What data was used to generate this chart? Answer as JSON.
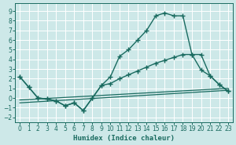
{
  "xlabel": "Humidex (Indice chaleur)",
  "xlim": [
    -0.5,
    23.5
  ],
  "ylim": [
    -2.5,
    9.8
  ],
  "yticks": [
    -2,
    -1,
    0,
    1,
    2,
    3,
    4,
    5,
    6,
    7,
    8,
    9
  ],
  "xticks": [
    0,
    1,
    2,
    3,
    4,
    5,
    6,
    7,
    8,
    9,
    10,
    11,
    12,
    13,
    14,
    15,
    16,
    17,
    18,
    19,
    20,
    21,
    22,
    23
  ],
  "background_color": "#cde8e8",
  "grid_color": "#ffffff",
  "line_color": "#1a6b60",
  "line1_x": [
    0,
    1,
    2,
    3,
    4,
    5,
    6,
    7,
    8,
    9,
    10,
    11,
    12,
    13,
    14,
    15,
    16,
    17,
    18,
    19,
    20,
    21,
    22,
    23
  ],
  "line1_y": [
    2.2,
    1.1,
    0.0,
    -0.1,
    -0.3,
    -0.8,
    -0.5,
    -1.3,
    0.0,
    1.3,
    2.2,
    4.3,
    5.0,
    6.0,
    7.0,
    8.5,
    8.8,
    8.5,
    8.5,
    4.5,
    2.9,
    2.3,
    1.4,
    0.7
  ],
  "line2_x": [
    0,
    1,
    2,
    3,
    4,
    5,
    6,
    7,
    8,
    9,
    10,
    11,
    12,
    13,
    14,
    15,
    16,
    17,
    18,
    19,
    20,
    21,
    22,
    23
  ],
  "line2_y": [
    2.2,
    1.1,
    0.0,
    -0.1,
    -0.3,
    -0.8,
    -0.5,
    -1.3,
    0.0,
    1.3,
    1.5,
    2.0,
    2.4,
    2.8,
    3.2,
    3.6,
    3.9,
    4.2,
    4.5,
    4.5,
    4.5,
    2.3,
    1.4,
    0.7
  ],
  "line3_x": [
    0,
    23
  ],
  "line3_y": [
    -0.2,
    1.0
  ],
  "line4_x": [
    0,
    23
  ],
  "line4_y": [
    -0.5,
    0.8
  ]
}
